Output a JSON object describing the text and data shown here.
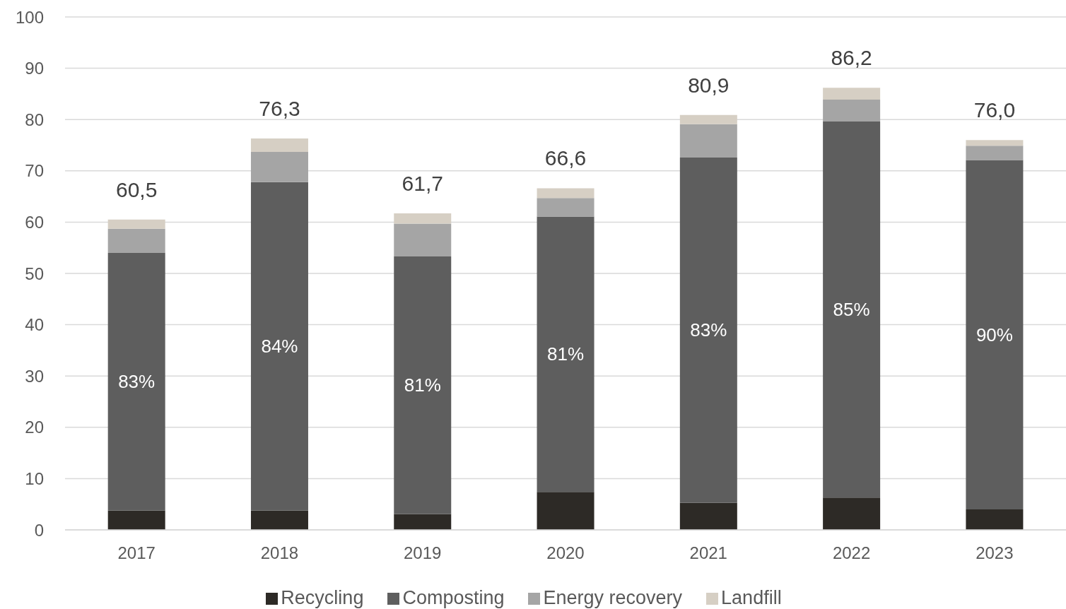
{
  "chart_data": {
    "type": "bar",
    "stacked": true,
    "categories": [
      "2017",
      "2018",
      "2019",
      "2020",
      "2021",
      "2022",
      "2023"
    ],
    "series": [
      {
        "name": "Recycling",
        "color": "#2d2a26",
        "values": [
          3.8,
          3.8,
          3.1,
          7.4,
          5.3,
          6.3,
          4.0
        ]
      },
      {
        "name": "Composting",
        "color": "#5e5e5e",
        "values": [
          50.2,
          64.0,
          50.2,
          53.7,
          67.3,
          73.3,
          68.1
        ]
      },
      {
        "name": "Energy recovery",
        "color": "#a5a5a5",
        "values": [
          4.7,
          5.9,
          6.4,
          3.6,
          6.5,
          4.3,
          2.8
        ]
      },
      {
        "name": "Landfill",
        "color": "#d6cfc4",
        "values": [
          1.8,
          2.6,
          2.0,
          1.9,
          1.8,
          2.3,
          1.1
        ]
      }
    ],
    "totals": [
      "60,5",
      "76,3",
      "61,7",
      "66,6",
      "80,9",
      "86,2",
      "76,0"
    ],
    "annotations": [
      "83%",
      "84%",
      "81%",
      "81%",
      "83%",
      "85%",
      "90%"
    ],
    "ylim": [
      0,
      100
    ],
    "yticks": [
      0,
      10,
      20,
      30,
      40,
      50,
      60,
      70,
      80,
      90,
      100
    ],
    "grid": "y",
    "legend": "bottom"
  }
}
